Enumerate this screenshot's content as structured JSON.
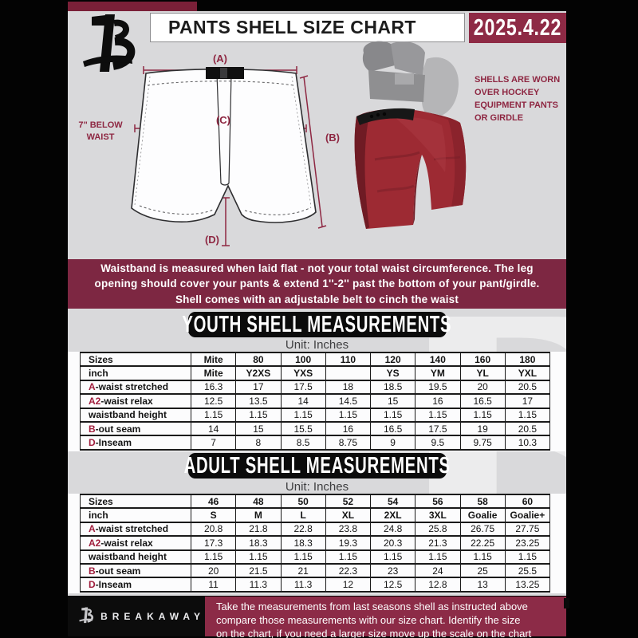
{
  "header": {
    "title": "PANTS SHELL SIZE CHART",
    "date": "2025.4.22"
  },
  "diagram": {
    "label_a": "(A)",
    "label_b": "(B)",
    "label_c": "(C)",
    "label_d": "(D)",
    "waist_note_line1": "7'' BELOW",
    "waist_note_line2": "WAIST"
  },
  "photo": {
    "caption_lines": [
      "SHELLS ARE WORN",
      "OVER HOCKEY",
      "EQUIPMENT PANTS",
      "OR GIRDLE"
    ]
  },
  "notice": {
    "lines": [
      "Waistband is measured when laid flat - not your total waist circumference. The leg",
      "opening should cover your pants & extend 1''-2'' past the bottom of your pant/girdle.",
      "Shell comes with an adjustable belt to cinch the waist"
    ]
  },
  "youth": {
    "heading": "YOUTH SHELL MEASUREMENTS",
    "unit": "Unit: Inches",
    "table": {
      "rows": [
        {
          "prefix": "",
          "label": "Sizes",
          "header": true,
          "values": [
            "Mite",
            "80",
            "100",
            "110",
            "120",
            "140",
            "160",
            "180"
          ]
        },
        {
          "prefix": "",
          "label": "inch",
          "header": true,
          "values": [
            "Mite",
            "Y2XS",
            "YXS",
            "",
            "YS",
            "YM",
            "YL",
            "YXL"
          ]
        },
        {
          "prefix": "A",
          "label": "-waist stretched",
          "header": false,
          "values": [
            "16.3",
            "17",
            "17.5",
            "18",
            "18.5",
            "19.5",
            "20",
            "20.5"
          ]
        },
        {
          "prefix": "A2",
          "label": "-waist relax",
          "header": false,
          "values": [
            "12.5",
            "13.5",
            "14",
            "14.5",
            "15",
            "16",
            "16.5",
            "17"
          ]
        },
        {
          "prefix": "",
          "label": "waistband height",
          "header": false,
          "values": [
            "1.15",
            "1.15",
            "1.15",
            "1.15",
            "1.15",
            "1.15",
            "1.15",
            "1.15"
          ]
        },
        {
          "prefix": "B",
          "label": "-out seam",
          "header": false,
          "values": [
            "14",
            "15",
            "15.5",
            "16",
            "16.5",
            "17.5",
            "19",
            "20.5"
          ]
        },
        {
          "prefix": "D",
          "label": "-Inseam",
          "header": false,
          "values": [
            "7",
            "8",
            "8.5",
            "8.75",
            "9",
            "9.5",
            "9.75",
            "10.3"
          ]
        }
      ]
    }
  },
  "adult": {
    "heading": "ADULT SHELL MEASUREMENTS",
    "unit": "Unit: Inches",
    "table": {
      "rows": [
        {
          "prefix": "",
          "label": "Sizes",
          "header": true,
          "values": [
            "46",
            "48",
            "50",
            "52",
            "54",
            "56",
            "58",
            "60"
          ]
        },
        {
          "prefix": "",
          "label": "inch",
          "header": true,
          "values": [
            "S",
            "M",
            "L",
            "XL",
            "2XL",
            "3XL",
            "Goalie",
            "Goalie+"
          ]
        },
        {
          "prefix": "A",
          "label": "-waist stretched",
          "header": false,
          "values": [
            "20.8",
            "21.8",
            "22.8",
            "23.8",
            "24.8",
            "25.8",
            "26.75",
            "27.75"
          ]
        },
        {
          "prefix": "A2",
          "label": "-waist relax",
          "header": false,
          "values": [
            "17.3",
            "18.3",
            "18.3",
            "19.3",
            "20.3",
            "21.3",
            "22.25",
            "23.25"
          ]
        },
        {
          "prefix": "",
          "label": "waistband height",
          "header": false,
          "values": [
            "1.15",
            "1.15",
            "1.15",
            "1.15",
            "1.15",
            "1.15",
            "1.15",
            "1.15"
          ]
        },
        {
          "prefix": "B",
          "label": "-out seam",
          "header": false,
          "values": [
            "20",
            "21.5",
            "21",
            "22.3",
            "23",
            "24",
            "25",
            "25.5"
          ]
        },
        {
          "prefix": "D",
          "label": "-Inseam",
          "header": false,
          "values": [
            "11",
            "11.3",
            "11.3",
            "12",
            "12.5",
            "12.8",
            "13",
            "13.25"
          ]
        }
      ]
    }
  },
  "footer": {
    "brand": "BREAKAWAY",
    "lines": [
      "Take the measurements from last seasons shell as instructed above",
      "compare those measurements  with our size chart. Identify the size",
      "on the chart, if you need a larger size move up the scale on the chart"
    ]
  },
  "watermark_letter": "B",
  "colors": {
    "banner_maroon": "#7d2742",
    "accent_maroon": "#8e2a45",
    "footer_maroon": "#8c2b47",
    "table_letter_red": "#a11f3e",
    "page_gray": "#d9d9db",
    "shell_red": "#9d2a33"
  }
}
